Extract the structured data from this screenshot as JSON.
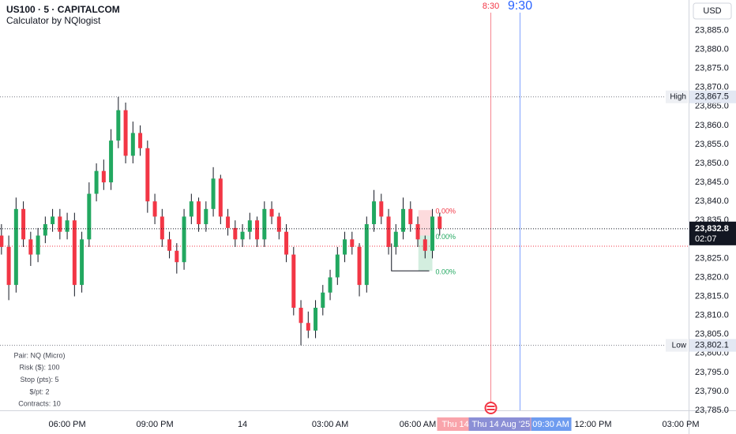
{
  "chart_data": {
    "type": "candlestick",
    "title": "US100 · 5 · CAPITALCOM",
    "subtitle": "Calculator by NQlogist",
    "currency": "USD",
    "up_color": "#22a860",
    "down_color": "#f23645",
    "xlim": [
      -8.3,
      15.27
    ],
    "ylim": [
      23785,
      23893
    ],
    "xticks": [
      {
        "value": -6,
        "label": "06:00 PM"
      },
      {
        "value": -3,
        "label": "09:00 PM"
      },
      {
        "value": 0,
        "label": "14"
      },
      {
        "value": 3,
        "label": "03:00 AM"
      },
      {
        "value": 6,
        "label": "06:00 AM"
      },
      {
        "value": 12,
        "label": "12:00 PM"
      },
      {
        "value": 15,
        "label": "03:00 PM"
      }
    ],
    "yticks": [
      {
        "value": 23885,
        "label": "23,885.0"
      },
      {
        "value": 23880,
        "label": "23,880.0"
      },
      {
        "value": 23875,
        "label": "23,875.0"
      },
      {
        "value": 23870,
        "label": "23,870.0"
      },
      {
        "value": 23865,
        "label": "23,865.0"
      },
      {
        "value": 23860,
        "label": "23,860.0"
      },
      {
        "value": 23855,
        "label": "23,855.0"
      },
      {
        "value": 23850,
        "label": "23,850.0"
      },
      {
        "value": 23845,
        "label": "23,845.0"
      },
      {
        "value": 23840,
        "label": "23,840.0"
      },
      {
        "value": 23835,
        "label": "23,835.0"
      },
      {
        "value": 23830,
        "label": "23,830.0"
      },
      {
        "value": 23825,
        "label": "23,825.0"
      },
      {
        "value": 23820,
        "label": "23,820.0"
      },
      {
        "value": 23815,
        "label": "23,815.0"
      },
      {
        "value": 23810,
        "label": "23,810.0"
      },
      {
        "value": 23805,
        "label": "23,805.0"
      },
      {
        "value": 23800,
        "label": "23,800.0"
      },
      {
        "value": 23795,
        "label": "23,795.0"
      },
      {
        "value": 23790,
        "label": "23,790.0"
      },
      {
        "value": 23785,
        "label": "23,785.0"
      }
    ],
    "x": [
      -8.25,
      -8,
      -7.75,
      -7.5,
      -7.25,
      -7,
      -6.75,
      -6.5,
      -6.25,
      -6,
      -5.75,
      -5.5,
      -5.25,
      -5,
      -4.75,
      -4.5,
      -4.25,
      -4,
      -3.75,
      -3.5,
      -3.25,
      -3,
      -2.75,
      -2.5,
      -2.25,
      -2,
      -1.75,
      -1.5,
      -1.25,
      -1,
      -0.75,
      -0.5,
      -0.25,
      0,
      0.25,
      0.5,
      0.75,
      1,
      1.25,
      1.5,
      1.75,
      2,
      2.25,
      2.5,
      2.75,
      3,
      3.25,
      3.5,
      3.75,
      4,
      4.25,
      4.5,
      4.75,
      5,
      5.25,
      5.5,
      5.75,
      6,
      6.25,
      6.5,
      6.75
    ],
    "open": [
      23831,
      23828,
      23818,
      23838,
      23830,
      23826,
      23831,
      23834,
      23836,
      23832,
      23835,
      23818,
      23830,
      23842,
      23848,
      23845,
      23856,
      23864,
      23852,
      23858,
      23854,
      23840,
      23836,
      23830,
      23827,
      23824,
      23836,
      23840,
      23834,
      23838,
      23846,
      23836,
      23833,
      23830,
      23832,
      23835,
      23830,
      23838,
      23836,
      23832,
      23826,
      23812,
      23808,
      23806,
      23812,
      23816,
      23820,
      23826,
      23830,
      23828,
      23818,
      23834,
      23840,
      23836,
      23828,
      23832,
      23838,
      23834,
      23830,
      23827,
      23836
    ],
    "high": [
      23834,
      23831,
      23841,
      23840,
      23832,
      23833,
      23836,
      23838,
      23838,
      23837,
      23837,
      23832,
      23845,
      23850,
      23851,
      23859,
      23867.5,
      23866,
      23861,
      23860,
      23856,
      23842,
      23838,
      23832,
      23829,
      23838,
      23842,
      23841,
      23840,
      23849,
      23847,
      23838,
      23835,
      23834,
      23837,
      23836,
      23840,
      23840,
      23837,
      23834,
      23828,
      23814,
      23811,
      23814,
      23818,
      23822,
      23828,
      23832,
      23832,
      23829,
      23836,
      23843,
      23842,
      23838,
      23834,
      23841,
      23840,
      23836,
      23831,
      23838,
      23837
    ],
    "low": [
      23826,
      23814,
      23816,
      23828,
      23823,
      23824,
      23829,
      23832,
      23830,
      23830,
      23815,
      23816,
      23828,
      23840,
      23843,
      23843,
      23854,
      23850,
      23850,
      23852,
      23837,
      23834,
      23828,
      23825,
      23821,
      23822,
      23834,
      23832,
      23832,
      23836,
      23834,
      23831,
      23828,
      23828,
      23830,
      23828,
      23828,
      23834,
      23830,
      23824,
      23810,
      23802.1,
      23804,
      23804,
      23810,
      23814,
      23818,
      23824,
      23826,
      23815,
      23816,
      23832,
      23834,
      23826,
      23826,
      23830,
      23832,
      23828,
      23825,
      23825,
      23831
    ],
    "close": [
      23828,
      23818,
      23838,
      23830,
      23826,
      23831,
      23834,
      23836,
      23832,
      23835,
      23818,
      23830,
      23842,
      23848,
      23845,
      23856,
      23864,
      23852,
      23858,
      23854,
      23840,
      23836,
      23830,
      23827,
      23824,
      23836,
      23840,
      23834,
      23838,
      23846,
      23836,
      23833,
      23830,
      23832,
      23835,
      23830,
      23838,
      23836,
      23832,
      23826,
      23812,
      23808,
      23806,
      23812,
      23816,
      23820,
      23826,
      23830,
      23828,
      23818,
      23834,
      23840,
      23836,
      23828,
      23832,
      23838,
      23834,
      23830,
      23827,
      23836,
      23832.8
    ],
    "levels": [
      {
        "name": "High",
        "value": 23867.5,
        "label": "23,867.5"
      },
      {
        "name": "Low",
        "value": 23802.1,
        "label": "23,802.1"
      }
    ],
    "last_price": {
      "value": 23832.8,
      "label": "23,832.8",
      "countdown": "02:07"
    },
    "entry_level": 23828.2,
    "time_markers": [
      {
        "value": 8.5,
        "label": "8:30",
        "axis_label": "Thu 14",
        "color": "#f23645"
      },
      {
        "value": 9.5,
        "label": "9:30",
        "axis_label": "Thu 14 Aug '25",
        "axis_time": "09:30 AM",
        "color": "#2962ff"
      }
    ],
    "position": {
      "x": [
        5.1,
        6.5
      ],
      "stop": 23837.7,
      "entry": 23831,
      "target": 23821.7,
      "labels": [
        "0.00%",
        "0.00%",
        "0.00%"
      ]
    },
    "calculator": [
      "Pair: NQ (Micro)",
      "Risk ($): 100",
      "Stop (pts): 5",
      "$/pt: 2",
      "Contracts: 10"
    ]
  }
}
